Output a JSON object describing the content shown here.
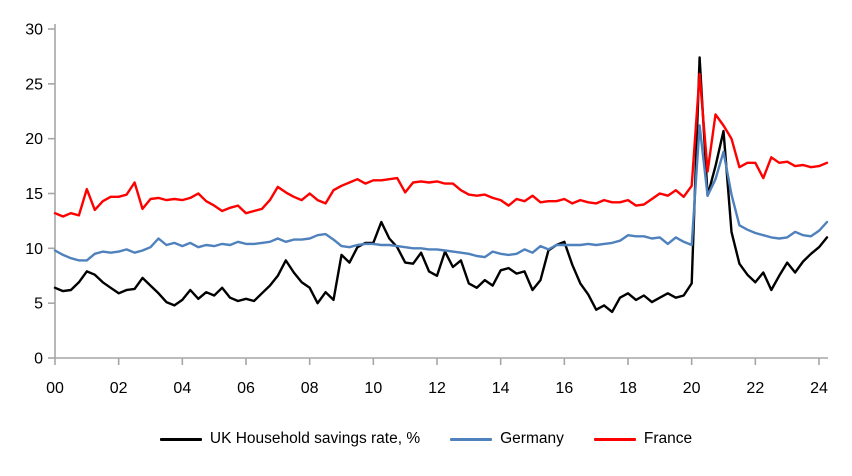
{
  "chart_data": {
    "type": "line",
    "title": "",
    "x_axis_note": "quarterly data, years 2000-2024",
    "x_start_year": 2000,
    "x_step_per_point": 0.25,
    "x_tick_labels": [
      "00",
      "02",
      "04",
      "06",
      "08",
      "10",
      "12",
      "14",
      "16",
      "18",
      "20",
      "22",
      "24"
    ],
    "y_tick_labels": [
      "0",
      "5",
      "10",
      "15",
      "20",
      "25",
      "30"
    ],
    "ylim": [
      0,
      30
    ],
    "grid": false,
    "legend_position": "bottom",
    "axis_color": "#a6a6a6",
    "series": [
      {
        "id": "uk",
        "name": "UK Household savings rate, %",
        "color": "#000000",
        "values": [
          6.4,
          6.1,
          6.2,
          6.9,
          7.9,
          7.6,
          6.9,
          6.4,
          5.9,
          6.2,
          6.3,
          7.3,
          6.6,
          5.9,
          5.1,
          4.8,
          5.3,
          6.2,
          5.4,
          6.0,
          5.7,
          6.4,
          5.5,
          5.2,
          5.4,
          5.2,
          5.9,
          6.6,
          7.5,
          8.9,
          7.8,
          6.9,
          6.4,
          5.0,
          6.0,
          5.3,
          9.4,
          8.7,
          10.1,
          10.5,
          10.5,
          12.4,
          10.9,
          10.1,
          8.7,
          8.6,
          9.6,
          7.9,
          7.5,
          9.7,
          8.3,
          8.9,
          6.8,
          6.4,
          7.1,
          6.6,
          8.0,
          8.2,
          7.7,
          7.9,
          6.2,
          7.1,
          9.8,
          10.3,
          10.6,
          8.5,
          6.8,
          5.8,
          4.4,
          4.8,
          4.2,
          5.5,
          5.9,
          5.3,
          5.7,
          5.1,
          5.5,
          5.9,
          5.5,
          5.7,
          6.8,
          27.4,
          14.8,
          17.5,
          20.7,
          11.5,
          8.6,
          7.6,
          6.9,
          7.8,
          6.2,
          7.5,
          8.7,
          7.8,
          8.8,
          9.5,
          10.1,
          11.0
        ]
      },
      {
        "id": "germany",
        "name": "Germany",
        "color": "#4f81bd",
        "values": [
          9.8,
          9.4,
          9.1,
          8.9,
          8.9,
          9.5,
          9.7,
          9.6,
          9.7,
          9.9,
          9.6,
          9.8,
          10.1,
          10.9,
          10.3,
          10.5,
          10.2,
          10.5,
          10.1,
          10.3,
          10.2,
          10.4,
          10.3,
          10.6,
          10.4,
          10.4,
          10.5,
          10.6,
          10.9,
          10.6,
          10.8,
          10.8,
          10.9,
          11.2,
          11.3,
          10.8,
          10.2,
          10.1,
          10.3,
          10.4,
          10.4,
          10.3,
          10.3,
          10.2,
          10.1,
          10.0,
          10.0,
          9.9,
          9.9,
          9.8,
          9.7,
          9.6,
          9.5,
          9.3,
          9.2,
          9.7,
          9.5,
          9.4,
          9.5,
          9.9,
          9.6,
          10.2,
          9.9,
          10.3,
          10.3,
          10.3,
          10.3,
          10.4,
          10.3,
          10.4,
          10.5,
          10.7,
          11.2,
          11.1,
          11.1,
          10.9,
          11.0,
          10.4,
          11.0,
          10.6,
          10.3,
          21.2,
          14.8,
          16.3,
          18.8,
          14.9,
          12.1,
          11.7,
          11.4,
          11.2,
          11.0,
          10.9,
          11.0,
          11.5,
          11.2,
          11.1,
          11.6,
          12.4
        ]
      },
      {
        "id": "france",
        "name": "France",
        "color": "#ff0000",
        "values": [
          13.2,
          12.9,
          13.2,
          13.0,
          15.4,
          13.5,
          14.3,
          14.7,
          14.7,
          14.9,
          16.0,
          13.6,
          14.5,
          14.6,
          14.4,
          14.5,
          14.4,
          14.6,
          15.0,
          14.3,
          13.9,
          13.4,
          13.7,
          13.9,
          13.2,
          13.4,
          13.6,
          14.4,
          15.6,
          15.1,
          14.7,
          14.4,
          15.0,
          14.4,
          14.1,
          15.3,
          15.7,
          16.0,
          16.3,
          15.9,
          16.2,
          16.2,
          16.3,
          16.4,
          15.1,
          16.0,
          16.1,
          16.0,
          16.1,
          15.9,
          15.9,
          15.3,
          14.9,
          14.8,
          14.9,
          14.6,
          14.4,
          13.9,
          14.5,
          14.3,
          14.8,
          14.2,
          14.3,
          14.3,
          14.5,
          14.1,
          14.4,
          14.2,
          14.1,
          14.4,
          14.2,
          14.2,
          14.4,
          13.9,
          14.0,
          14.5,
          15.0,
          14.8,
          15.3,
          14.7,
          15.7,
          25.9,
          17.0,
          22.2,
          21.2,
          20.0,
          17.4,
          17.8,
          17.8,
          16.4,
          18.3,
          17.8,
          17.9,
          17.5,
          17.6,
          17.4,
          17.5,
          17.8
        ]
      }
    ]
  }
}
